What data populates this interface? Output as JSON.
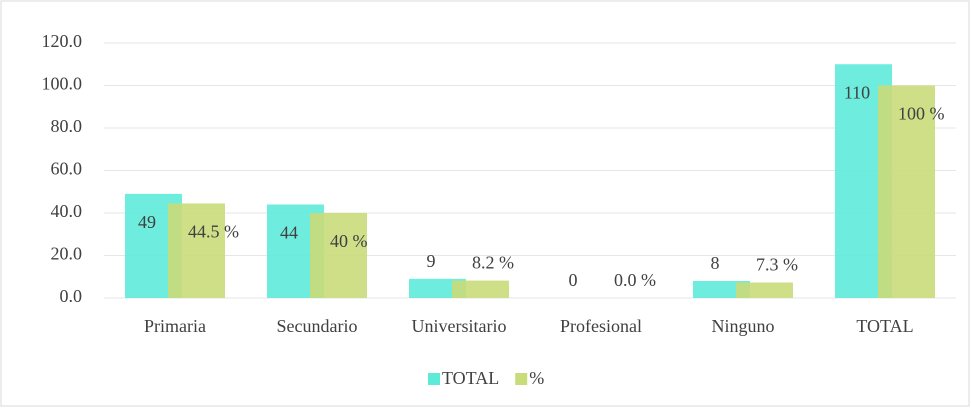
{
  "chart_data": {
    "type": "bar",
    "categories": [
      "Primaria",
      "Secundario",
      "Universitario",
      "Profesional",
      "Ninguno",
      "TOTAL"
    ],
    "series": [
      {
        "name": "TOTAL",
        "color": "#5eead9",
        "values": [
          49,
          44,
          9,
          0,
          8,
          110
        ]
      },
      {
        "name": "%",
        "color": "#c9dc7a",
        "values": [
          44.5,
          40,
          8.2,
          0.0,
          7.3,
          100
        ],
        "value_labels": [
          "44.5 %",
          "40 %",
          "8.2 %",
          "0.0 %",
          "7.3 %",
          "100 %"
        ]
      }
    ],
    "ylim": [
      0,
      120
    ],
    "yticks": [
      {
        "value": 0,
        "label": "0.0"
      },
      {
        "value": 20,
        "label": "20.0"
      },
      {
        "value": 40,
        "label": "40.0"
      },
      {
        "value": 60,
        "label": "60.0"
      },
      {
        "value": 80,
        "label": "80.0"
      },
      {
        "value": 100,
        "label": "100.0"
      },
      {
        "value": 120,
        "label": "120.0"
      }
    ],
    "grid": true,
    "legend": "bottom"
  }
}
